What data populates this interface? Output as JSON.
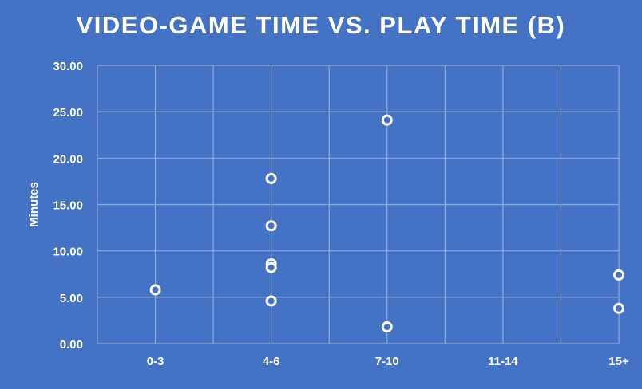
{
  "chart_data": {
    "type": "scatter",
    "title": "VIDEO-GAME TIME VS. PLAY TIME (B)",
    "xlabel": "",
    "ylabel": "Minutes",
    "categories": [
      "0-3",
      "4-6",
      "7-10",
      "11-14",
      "15+"
    ],
    "y_ticks": [
      "0.00",
      "5.00",
      "10.00",
      "15.00",
      "20.00",
      "25.00",
      "30.00"
    ],
    "ylim": [
      0,
      30
    ],
    "grid": true,
    "legend": "none",
    "points": [
      {
        "x": 1,
        "y": 5.8
      },
      {
        "x": 3,
        "y": 17.8
      },
      {
        "x": 3,
        "y": 12.7
      },
      {
        "x": 3,
        "y": 8.6
      },
      {
        "x": 3,
        "y": 8.2
      },
      {
        "x": 3,
        "y": 4.6
      },
      {
        "x": 5,
        "y": 24.1
      },
      {
        "x": 5,
        "y": 1.8
      },
      {
        "x": 9,
        "y": 7.4
      },
      {
        "x": 9,
        "y": 3.8
      }
    ],
    "colors": {
      "background": "#4472c4",
      "gridline": "#8eaadb",
      "marker_fill": "#4472c4",
      "marker_stroke": "#ffffff",
      "text": "#ffffff"
    }
  }
}
